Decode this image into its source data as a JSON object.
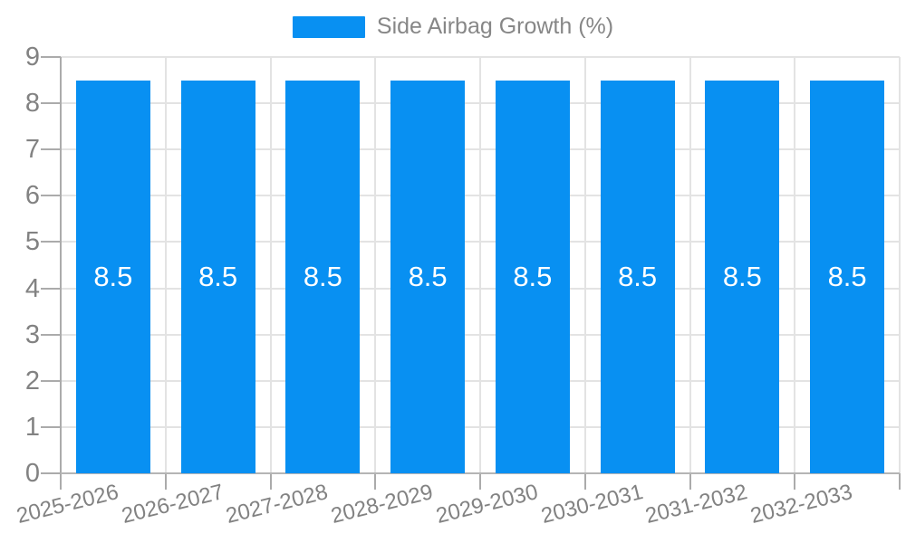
{
  "chart_data": {
    "type": "bar",
    "title": "",
    "legend_label": "Side Airbag Growth (%)",
    "legend_position": "top",
    "categories": [
      "2025-2026",
      "2026-2027",
      "2027-2028",
      "2028-2029",
      "2029-2030",
      "2030-2031",
      "2031-2032",
      "2032-2033"
    ],
    "series": [
      {
        "name": "Side Airbag Growth (%)",
        "values": [
          8.5,
          8.5,
          8.5,
          8.5,
          8.5,
          8.5,
          8.5,
          8.5
        ],
        "value_labels": [
          "8.5",
          "8.5",
          "8.5",
          "8.5",
          "8.5",
          "8.5",
          "8.5",
          "8.5"
        ]
      }
    ],
    "xlabel": "",
    "ylabel": "",
    "ylim": [
      0,
      9
    ],
    "ytick_step": 1,
    "ytick_labels": [
      "0",
      "1",
      "2",
      "3",
      "4",
      "5",
      "6",
      "7",
      "8",
      "9"
    ],
    "grid": true,
    "colors": {
      "bar": "#0890F2",
      "bar_label": "#ffffff",
      "grid": "#e3e3e3",
      "axis": "#ababab",
      "text": "#828282",
      "background": "#ffffff"
    }
  }
}
